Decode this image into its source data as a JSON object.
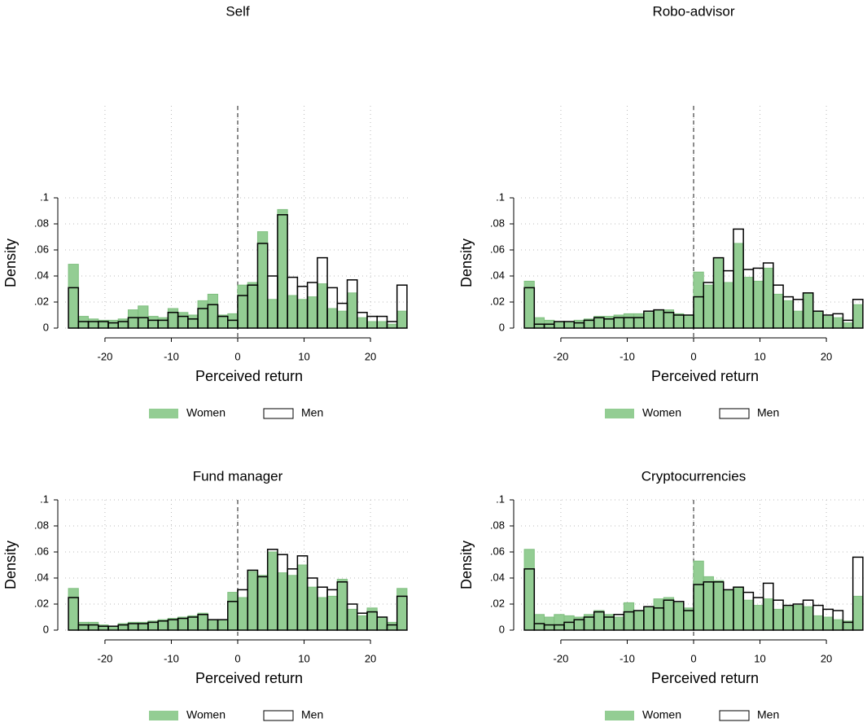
{
  "chart_data": [
    {
      "type": "histogram",
      "title": "Self",
      "xlabel": "Perceived return",
      "ylabel": "Density",
      "bins": [
        -25.5,
        -24,
        -22.5,
        -21,
        -19.5,
        -18,
        -16.5,
        -15,
        -13.5,
        -12,
        -10.5,
        -9,
        -7.5,
        -6,
        -4.5,
        -3,
        -1.5,
        0,
        1.5,
        3,
        4.5,
        6,
        7.5,
        9,
        10.5,
        12,
        13.5,
        15,
        16.5,
        18,
        19.5,
        21,
        22.5,
        24,
        25.5
      ],
      "series": [
        {
          "name": "Women",
          "color": "#93cd93",
          "values": [
            0.049,
            0.009,
            0.007,
            0.006,
            0.006,
            0.007,
            0.014,
            0.017,
            0.009,
            0.008,
            0.015,
            0.012,
            0.01,
            0.021,
            0.026,
            0.01,
            0.011,
            0.033,
            0.035,
            0.074,
            0.022,
            0.091,
            0.025,
            0.022,
            0.024,
            0.034,
            0.015,
            0.013,
            0.027,
            0.008,
            0.005,
            0.005,
            0.003,
            0.013
          ]
        },
        {
          "name": "Men",
          "color": "#000000",
          "values": [
            0.031,
            0.005,
            0.005,
            0.005,
            0.004,
            0.005,
            0.008,
            0.008,
            0.006,
            0.006,
            0.012,
            0.009,
            0.007,
            0.015,
            0.018,
            0.009,
            0.006,
            0.025,
            0.033,
            0.065,
            0.04,
            0.087,
            0.039,
            0.032,
            0.035,
            0.054,
            0.031,
            0.019,
            0.037,
            0.012,
            0.009,
            0.009,
            0.005,
            0.033
          ]
        }
      ],
      "xlim": [
        -26,
        26
      ],
      "xticks": [
        -20,
        -10,
        0,
        10,
        20
      ],
      "ylim": [
        0,
        0.1
      ],
      "yticks": [
        0,
        {
          "value": 0.02,
          "label": ".02"
        },
        {
          "value": 0.04,
          "label": ".04"
        },
        {
          "value": 0.06,
          "label": ".06"
        },
        {
          "value": 0.08,
          "label": ".08"
        },
        {
          "value": 0.1,
          "label": ".1"
        }
      ],
      "reference_line": 0,
      "grid": true
    },
    {
      "type": "histogram",
      "title": "Robo-advisor",
      "xlabel": "Perceived return",
      "ylabel": "Density",
      "bins": [
        -25.5,
        -24,
        -22.5,
        -21,
        -19.5,
        -18,
        -16.5,
        -15,
        -13.5,
        -12,
        -10.5,
        -9,
        -7.5,
        -6,
        -4.5,
        -3,
        -1.5,
        0,
        1.5,
        3,
        4.5,
        6,
        7.5,
        9,
        10.5,
        12,
        13.5,
        15,
        16.5,
        18,
        19.5,
        21,
        22.5,
        24,
        25.5
      ],
      "series": [
        {
          "name": "Women",
          "color": "#93cd93",
          "values": [
            0.036,
            0.008,
            0.006,
            0.005,
            0.005,
            0.006,
            0.007,
            0.009,
            0.009,
            0.01,
            0.011,
            0.011,
            0.012,
            0.014,
            0.014,
            0.011,
            0.01,
            0.043,
            0.033,
            0.054,
            0.035,
            0.065,
            0.039,
            0.036,
            0.046,
            0.026,
            0.021,
            0.013,
            0.027,
            0.013,
            0.009,
            0.008,
            0.004,
            0.018
          ]
        },
        {
          "name": "Men",
          "color": "#000000",
          "values": [
            0.031,
            0.003,
            0.003,
            0.005,
            0.005,
            0.004,
            0.006,
            0.008,
            0.007,
            0.008,
            0.008,
            0.008,
            0.013,
            0.014,
            0.012,
            0.01,
            0.01,
            0.024,
            0.035,
            0.054,
            0.044,
            0.076,
            0.045,
            0.046,
            0.05,
            0.033,
            0.024,
            0.022,
            0.027,
            0.013,
            0.01,
            0.011,
            0.006,
            0.022
          ]
        }
      ],
      "xlim": [
        -26,
        26
      ],
      "xticks": [
        -20,
        -10,
        0,
        10,
        20
      ],
      "ylim": [
        0,
        0.1
      ],
      "yticks": [
        0,
        {
          "value": 0.02,
          "label": ".02"
        },
        {
          "value": 0.04,
          "label": ".04"
        },
        {
          "value": 0.06,
          "label": ".06"
        },
        {
          "value": 0.08,
          "label": ".08"
        },
        {
          "value": 0.1,
          "label": ".1"
        }
      ],
      "reference_line": 0,
      "grid": true
    },
    {
      "type": "histogram",
      "title": "Fund manager",
      "xlabel": "Perceived return",
      "ylabel": "Density",
      "bins": [
        -25.5,
        -24,
        -22.5,
        -21,
        -19.5,
        -18,
        -16.5,
        -15,
        -13.5,
        -12,
        -10.5,
        -9,
        -7.5,
        -6,
        -4.5,
        -3,
        -1.5,
        0,
        1.5,
        3,
        4.5,
        6,
        7.5,
        9,
        10.5,
        12,
        13.5,
        15,
        16.5,
        18,
        19.5,
        21,
        22.5,
        24,
        25.5
      ],
      "series": [
        {
          "name": "Women",
          "color": "#93cd93",
          "values": [
            0.032,
            0.006,
            0.006,
            0.004,
            0.003,
            0.005,
            0.006,
            0.006,
            0.007,
            0.008,
            0.009,
            0.01,
            0.011,
            0.013,
            0.008,
            0.008,
            0.029,
            0.025,
            0.045,
            0.042,
            0.06,
            0.044,
            0.042,
            0.05,
            0.033,
            0.025,
            0.026,
            0.039,
            0.016,
            0.011,
            0.017,
            0.01,
            0.006,
            0.032
          ]
        },
        {
          "name": "Men",
          "color": "#000000",
          "values": [
            0.025,
            0.004,
            0.004,
            0.003,
            0.003,
            0.004,
            0.005,
            0.005,
            0.006,
            0.007,
            0.008,
            0.009,
            0.01,
            0.012,
            0.008,
            0.008,
            0.022,
            0.031,
            0.046,
            0.041,
            0.062,
            0.058,
            0.047,
            0.057,
            0.04,
            0.033,
            0.031,
            0.037,
            0.02,
            0.013,
            0.014,
            0.01,
            0.004,
            0.026
          ]
        }
      ],
      "xlim": [
        -26,
        26
      ],
      "xticks": [
        -20,
        -10,
        0,
        10,
        20
      ],
      "ylim": [
        0,
        0.1
      ],
      "yticks": [
        0,
        {
          "value": 0.02,
          "label": ".02"
        },
        {
          "value": 0.04,
          "label": ".04"
        },
        {
          "value": 0.06,
          "label": ".06"
        },
        {
          "value": 0.08,
          "label": ".08"
        },
        {
          "value": 0.1,
          "label": ".1"
        }
      ],
      "reference_line": 0,
      "grid": true
    },
    {
      "type": "histogram",
      "title": "Cryptocurrencies",
      "xlabel": "Perceived return",
      "ylabel": "Density",
      "bins": [
        -25.5,
        -24,
        -22.5,
        -21,
        -19.5,
        -18,
        -16.5,
        -15,
        -13.5,
        -12,
        -10.5,
        -9,
        -7.5,
        -6,
        -4.5,
        -3,
        -1.5,
        0,
        1.5,
        3,
        4.5,
        6,
        7.5,
        9,
        10.5,
        12,
        13.5,
        15,
        16.5,
        18,
        19.5,
        21,
        22.5,
        24,
        25.5
      ],
      "series": [
        {
          "name": "Women",
          "color": "#93cd93",
          "values": [
            0.062,
            0.012,
            0.01,
            0.012,
            0.011,
            0.01,
            0.012,
            0.015,
            0.012,
            0.01,
            0.021,
            0.015,
            0.018,
            0.024,
            0.025,
            0.021,
            0.017,
            0.053,
            0.041,
            0.038,
            0.031,
            0.033,
            0.023,
            0.019,
            0.024,
            0.016,
            0.018,
            0.019,
            0.018,
            0.011,
            0.01,
            0.008,
            0.007,
            0.026
          ]
        },
        {
          "name": "Men",
          "color": "#000000",
          "values": [
            0.047,
            0.005,
            0.004,
            0.004,
            0.006,
            0.008,
            0.01,
            0.014,
            0.01,
            0.012,
            0.014,
            0.015,
            0.018,
            0.017,
            0.023,
            0.022,
            0.015,
            0.035,
            0.037,
            0.037,
            0.031,
            0.033,
            0.029,
            0.025,
            0.036,
            0.023,
            0.019,
            0.02,
            0.023,
            0.019,
            0.016,
            0.015,
            0.006,
            0.056
          ]
        }
      ],
      "xlim": [
        -26,
        26
      ],
      "xticks": [
        -20,
        -10,
        0,
        10,
        20
      ],
      "ylim": [
        0,
        0.1
      ],
      "yticks": [
        0,
        {
          "value": 0.02,
          "label": ".02"
        },
        {
          "value": 0.04,
          "label": ".04"
        },
        {
          "value": 0.06,
          "label": ".06"
        },
        {
          "value": 0.08,
          "label": ".08"
        },
        {
          "value": 0.1,
          "label": ".1"
        }
      ],
      "reference_line": 0,
      "grid": true
    }
  ]
}
